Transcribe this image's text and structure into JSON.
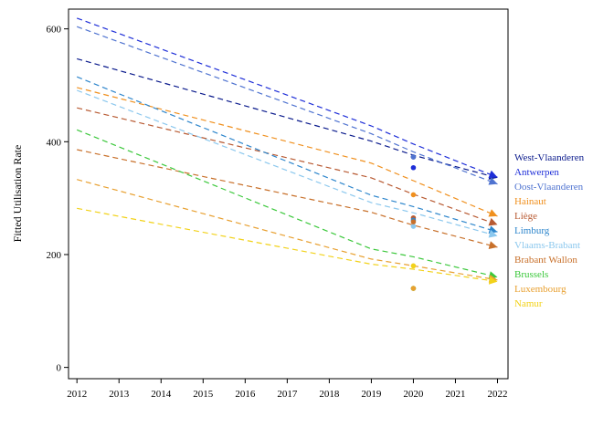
{
  "chart_data": {
    "type": "line",
    "title": "",
    "xlabel": "",
    "ylabel": "Fitted Utilisation Rate",
    "x_ticks": [
      2012,
      2013,
      2014,
      2015,
      2016,
      2017,
      2018,
      2019,
      2020,
      2021,
      2022
    ],
    "y_ticks": [
      0,
      200,
      400,
      600
    ],
    "xlim": [
      2011.8,
      2022.25
    ],
    "ylim": [
      -20,
      635
    ],
    "legend_position": "right",
    "series": [
      {
        "name": "West-Vlaanderen",
        "color": "#0a1a8c",
        "x": [
          2012,
          2019,
          2020,
          2022
        ],
        "values": [
          547,
          401,
          376,
          336
        ],
        "observed_2020": 373
      },
      {
        "name": "Antwerpen",
        "color": "#1e2ed8",
        "x": [
          2012,
          2019,
          2020,
          2022
        ],
        "values": [
          619,
          428,
          396,
          337
        ],
        "observed_2020": 354
      },
      {
        "name": "Oost-Vlaanderen",
        "color": "#4f73d0",
        "x": [
          2012,
          2019,
          2020,
          2022
        ],
        "values": [
          604,
          414,
          382,
          325
        ],
        "observed_2020": 373
      },
      {
        "name": "Hainaut",
        "color": "#f0901e",
        "x": [
          2012,
          2019,
          2020,
          2022
        ],
        "values": [
          496,
          362,
          331,
          268
        ],
        "observed_2020": 306
      },
      {
        "name": "Liège",
        "color": "#b85a32",
        "x": [
          2012,
          2019,
          2020,
          2022
        ],
        "values": [
          460,
          336,
          307,
          253
        ],
        "observed_2020": 265
      },
      {
        "name": "Limburg",
        "color": "#2e86cc",
        "x": [
          2012,
          2019,
          2020,
          2022
        ],
        "values": [
          515,
          305,
          285,
          240
        ],
        "observed_2020": 261
      },
      {
        "name": "Vlaams-Brabant",
        "color": "#8cc8ee",
        "x": [
          2012,
          2019,
          2020,
          2022
        ],
        "values": [
          491,
          292,
          274,
          233
        ],
        "observed_2020": 250
      },
      {
        "name": "Brabant Wallon",
        "color": "#c8702a",
        "x": [
          2012,
          2019,
          2020,
          2022
        ],
        "values": [
          386,
          275,
          252,
          213
        ],
        "observed_2020": 258
      },
      {
        "name": "Brussels",
        "color": "#3cc83c",
        "x": [
          2012,
          2019,
          2020,
          2022
        ],
        "values": [
          421,
          210,
          196,
          160
        ],
        "observed_2020": 140
      },
      {
        "name": "Luxembourg",
        "color": "#e8a030",
        "x": [
          2012,
          2019,
          2020,
          2022
        ],
        "values": [
          333,
          192,
          180,
          155
        ],
        "observed_2020": 140
      },
      {
        "name": "Namur",
        "color": "#f2d21a",
        "x": [
          2012,
          2019,
          2020,
          2022
        ],
        "values": [
          282,
          183,
          174,
          152
        ],
        "observed_2020": 180
      }
    ]
  }
}
